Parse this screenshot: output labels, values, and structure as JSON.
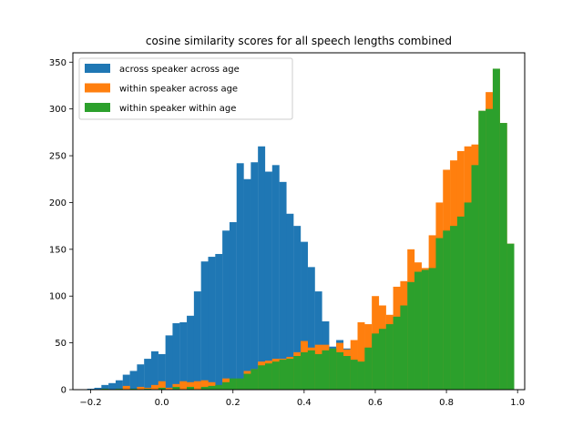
{
  "chart_data": {
    "type": "bar",
    "subtype": "histogram-overlay",
    "title": "cosine similarity scores for all speech lengths combined",
    "xlabel": "",
    "ylabel": "",
    "xlim": [
      -0.25,
      1.02
    ],
    "ylim": [
      0,
      360
    ],
    "xticks": [
      -0.2,
      0.0,
      0.2,
      0.4,
      0.6,
      0.8,
      1.0
    ],
    "xtick_labels": [
      "−0.2",
      "0.0",
      "0.2",
      "0.4",
      "0.6",
      "0.8",
      "1.0"
    ],
    "yticks": [
      0,
      50,
      100,
      150,
      200,
      250,
      300,
      350
    ],
    "ytick_labels": [
      "0",
      "50",
      "100",
      "150",
      "200",
      "250",
      "300",
      "350"
    ],
    "grid": false,
    "legend_position": "top-left",
    "series": [
      {
        "name": "across speaker across age",
        "color": "#1f77b4",
        "bin_width": 0.0196,
        "bins": [
          [
            -0.2,
            1
          ],
          [
            -0.18,
            2
          ],
          [
            -0.16,
            5
          ],
          [
            -0.14,
            7
          ],
          [
            -0.12,
            10
          ],
          [
            -0.1,
            16
          ],
          [
            -0.08,
            20
          ],
          [
            -0.06,
            27
          ],
          [
            -0.04,
            33
          ],
          [
            -0.02,
            41
          ],
          [
            0.0,
            38
          ],
          [
            0.02,
            58
          ],
          [
            0.04,
            71
          ],
          [
            0.06,
            72
          ],
          [
            0.08,
            79
          ],
          [
            0.1,
            105
          ],
          [
            0.12,
            137
          ],
          [
            0.14,
            142
          ],
          [
            0.16,
            145
          ],
          [
            0.18,
            170
          ],
          [
            0.2,
            179
          ],
          [
            0.22,
            242
          ],
          [
            0.24,
            225
          ],
          [
            0.26,
            243
          ],
          [
            0.28,
            260
          ],
          [
            0.3,
            233
          ],
          [
            0.32,
            240
          ],
          [
            0.34,
            222
          ],
          [
            0.36,
            188
          ],
          [
            0.38,
            175
          ],
          [
            0.4,
            158
          ],
          [
            0.42,
            131
          ],
          [
            0.44,
            105
          ],
          [
            0.46,
            73
          ],
          [
            0.48,
            46
          ],
          [
            0.5,
            53
          ],
          [
            0.52,
            44
          ],
          [
            0.54,
            30
          ],
          [
            0.56,
            30
          ],
          [
            0.58,
            20
          ]
        ]
      },
      {
        "name": "within speaker across age",
        "color": "#ff7f0e",
        "bin_width": 0.0196,
        "bins": [
          [
            -0.16,
            1
          ],
          [
            -0.12,
            1
          ],
          [
            -0.1,
            4
          ],
          [
            -0.06,
            3
          ],
          [
            -0.04,
            2
          ],
          [
            -0.02,
            5
          ],
          [
            0.0,
            9
          ],
          [
            0.02,
            2
          ],
          [
            0.04,
            6
          ],
          [
            0.06,
            9
          ],
          [
            0.08,
            8
          ],
          [
            0.1,
            9
          ],
          [
            0.12,
            10
          ],
          [
            0.14,
            8
          ],
          [
            0.16,
            4
          ],
          [
            0.18,
            12
          ],
          [
            0.2,
            11
          ],
          [
            0.22,
            11
          ],
          [
            0.24,
            20
          ],
          [
            0.26,
            22
          ],
          [
            0.28,
            30
          ],
          [
            0.3,
            31
          ],
          [
            0.32,
            33
          ],
          [
            0.34,
            33
          ],
          [
            0.36,
            35
          ],
          [
            0.38,
            40
          ],
          [
            0.4,
            52
          ],
          [
            0.42,
            45
          ],
          [
            0.44,
            48
          ],
          [
            0.46,
            48
          ],
          [
            0.48,
            40
          ],
          [
            0.5,
            50
          ],
          [
            0.52,
            43
          ],
          [
            0.54,
            53
          ],
          [
            0.56,
            72
          ],
          [
            0.58,
            70
          ],
          [
            0.6,
            100
          ],
          [
            0.62,
            90
          ],
          [
            0.64,
            80
          ],
          [
            0.66,
            110
          ],
          [
            0.68,
            116
          ],
          [
            0.7,
            150
          ],
          [
            0.72,
            136
          ],
          [
            0.74,
            130
          ],
          [
            0.76,
            165
          ],
          [
            0.78,
            200
          ],
          [
            0.8,
            235
          ],
          [
            0.82,
            245
          ],
          [
            0.84,
            255
          ],
          [
            0.86,
            260
          ],
          [
            0.88,
            262
          ],
          [
            0.9,
            298
          ],
          [
            0.92,
            318
          ],
          [
            0.94,
            343
          ],
          [
            0.96,
            285
          ],
          [
            0.98,
            156
          ]
        ]
      },
      {
        "name": "within speaker within age",
        "color": "#2ca02c",
        "bin_width": 0.0196,
        "bins": [
          [
            -0.16,
            1
          ],
          [
            -0.12,
            1
          ],
          [
            -0.08,
            1
          ],
          [
            -0.04,
            1
          ],
          [
            0.0,
            2
          ],
          [
            0.04,
            3
          ],
          [
            0.08,
            3
          ],
          [
            0.12,
            3
          ],
          [
            0.14,
            4
          ],
          [
            0.16,
            5
          ],
          [
            0.18,
            8
          ],
          [
            0.2,
            12
          ],
          [
            0.22,
            12
          ],
          [
            0.24,
            17
          ],
          [
            0.26,
            22
          ],
          [
            0.28,
            26
          ],
          [
            0.3,
            28
          ],
          [
            0.32,
            30
          ],
          [
            0.34,
            32
          ],
          [
            0.36,
            33
          ],
          [
            0.38,
            36
          ],
          [
            0.4,
            40
          ],
          [
            0.42,
            42
          ],
          [
            0.44,
            38
          ],
          [
            0.46,
            42
          ],
          [
            0.48,
            44
          ],
          [
            0.5,
            40
          ],
          [
            0.52,
            36
          ],
          [
            0.54,
            32
          ],
          [
            0.56,
            30
          ],
          [
            0.58,
            45
          ],
          [
            0.6,
            60
          ],
          [
            0.62,
            65
          ],
          [
            0.64,
            70
          ],
          [
            0.66,
            78
          ],
          [
            0.68,
            90
          ],
          [
            0.7,
            115
          ],
          [
            0.72,
            126
          ],
          [
            0.74,
            128
          ],
          [
            0.76,
            130
          ],
          [
            0.78,
            162
          ],
          [
            0.8,
            170
          ],
          [
            0.82,
            175
          ],
          [
            0.84,
            185
          ],
          [
            0.86,
            200
          ],
          [
            0.88,
            240
          ],
          [
            0.9,
            298
          ],
          [
            0.92,
            300
          ],
          [
            0.94,
            343
          ],
          [
            0.96,
            285
          ],
          [
            0.98,
            156
          ]
        ]
      }
    ]
  }
}
